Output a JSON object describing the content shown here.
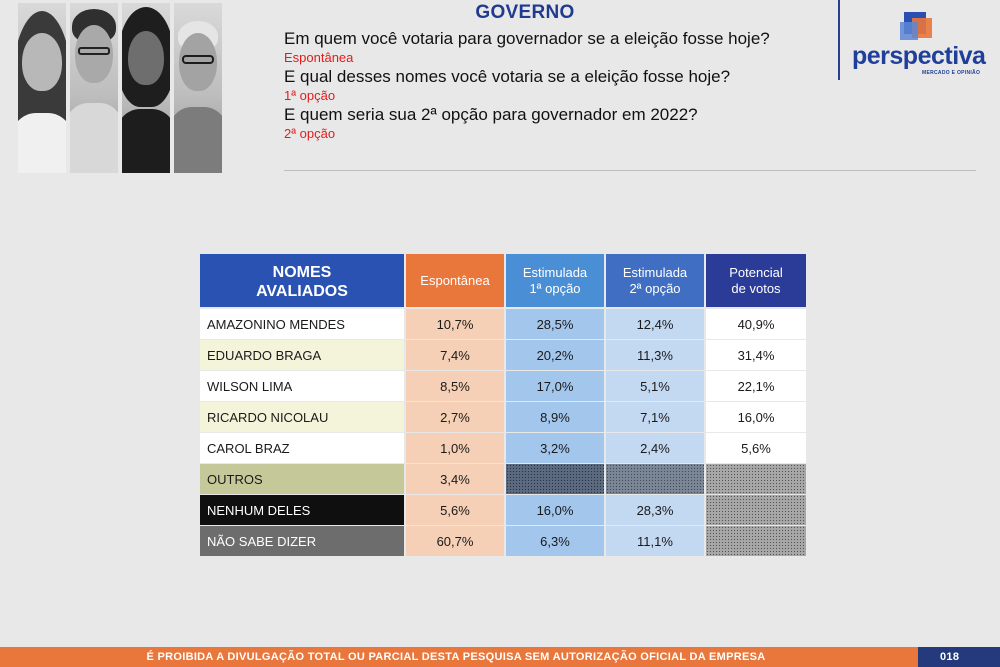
{
  "header": {
    "section_title": "GOVERNO",
    "questions": [
      {
        "text": "Em quem você votaria para governador se a eleição fosse hoje?",
        "sub": "Espontânea"
      },
      {
        "text": "E qual desses nomes você votaria se a eleição fosse hoje?",
        "sub": "1ª opção"
      },
      {
        "text": "E quem seria sua 2ª opção para governador em 2022?",
        "sub": "2ª opção"
      }
    ]
  },
  "logo": {
    "name": "perspectiva",
    "tagline": "MERCADO E OPINIÃO",
    "color": "#1f3f9a"
  },
  "table": {
    "headers": {
      "names_line1": "NOMES",
      "names_line2": "AVALIADOS",
      "espontanea": "Espontânea",
      "est1_line1": "Estimulada",
      "est1_line2": "1ª opção",
      "est2_line1": "Estimulada",
      "est2_line2": "2ª opção",
      "pot_line1": "Potencial",
      "pot_line2": "de votos"
    },
    "rows": [
      {
        "name": "AMAZONINO MENDES",
        "esp": "10,7%",
        "est1": "28,5%",
        "est2": "12,4%",
        "pot": "40,9%"
      },
      {
        "name": "EDUARDO BRAGA",
        "esp": "7,4%",
        "est1": "20,2%",
        "est2": "11,3%",
        "pot": "31,4%"
      },
      {
        "name": "WILSON LIMA",
        "esp": "8,5%",
        "est1": "17,0%",
        "est2": "5,1%",
        "pot": "22,1%"
      },
      {
        "name": "RICARDO NICOLAU",
        "esp": "2,7%",
        "est1": "8,9%",
        "est2": "7,1%",
        "pot": "16,0%"
      },
      {
        "name": "CAROL BRAZ",
        "esp": "1,0%",
        "est1": "3,2%",
        "est2": "2,4%",
        "pot": "5,6%"
      },
      {
        "name": "OUTROS",
        "esp": "3,4%"
      },
      {
        "name": "NENHUM DELES",
        "esp": "5,6%",
        "est1": "16,0%",
        "est2": "28,3%"
      },
      {
        "name": "NÃO SABE DIZER",
        "esp": "60,7%",
        "est1": "6,3%",
        "est2": "11,1%"
      }
    ]
  },
  "footer": {
    "notice": "É PROIBIDA A DIVULGAÇÃO TOTAL OU PARCIAL DESTA PESQUISA SEM AUTORIZAÇÃO OFICIAL DA EMPRESA",
    "page_number": "018"
  }
}
